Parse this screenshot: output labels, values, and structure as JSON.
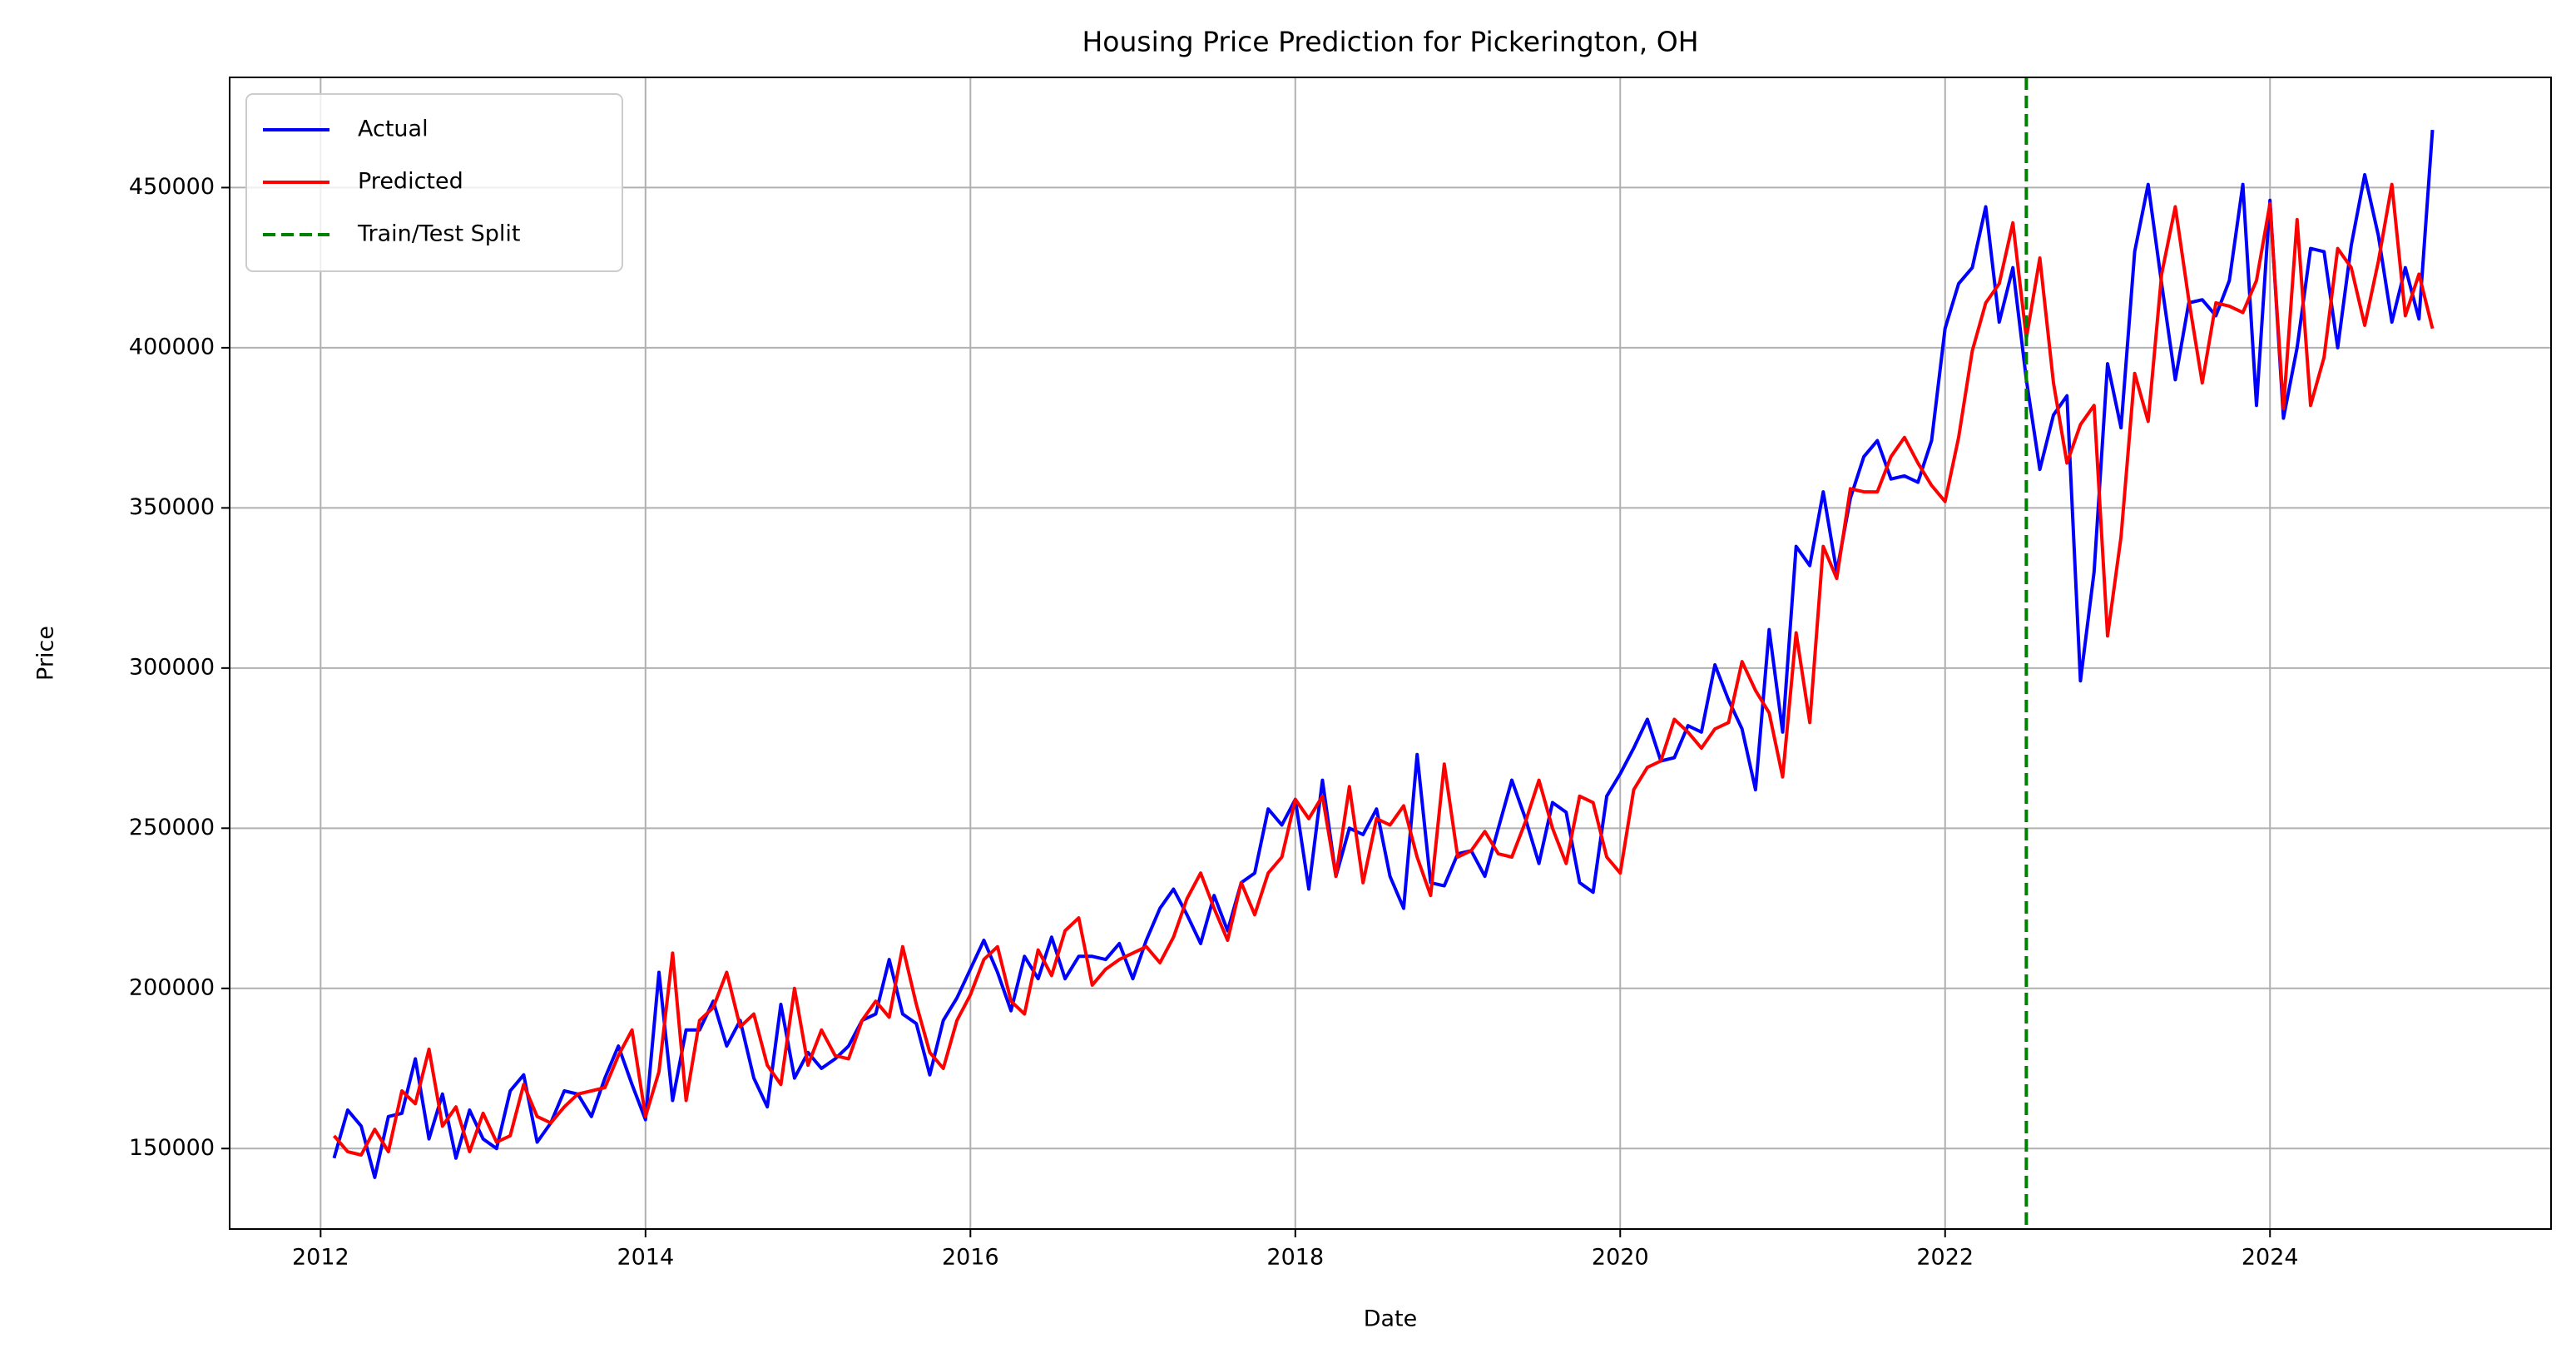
{
  "chart_data": {
    "type": "line",
    "title": "Housing Price Prediction for Pickerington, OH",
    "xlabel": "Date",
    "ylabel": "Price",
    "x": [
      2012.083,
      2012.167,
      2012.25,
      2012.333,
      2012.417,
      2012.5,
      2012.583,
      2012.667,
      2012.75,
      2012.833,
      2012.917,
      2013,
      2013.083,
      2013.167,
      2013.25,
      2013.333,
      2013.417,
      2013.5,
      2013.583,
      2013.667,
      2013.75,
      2013.833,
      2013.917,
      2014,
      2014.083,
      2014.167,
      2014.25,
      2014.333,
      2014.417,
      2014.5,
      2014.583,
      2014.667,
      2014.75,
      2014.833,
      2014.917,
      2015,
      2015.083,
      2015.167,
      2015.25,
      2015.333,
      2015.417,
      2015.5,
      2015.583,
      2015.667,
      2015.75,
      2015.833,
      2015.917,
      2016,
      2016.083,
      2016.167,
      2016.25,
      2016.333,
      2016.417,
      2016.5,
      2016.583,
      2016.667,
      2016.75,
      2016.833,
      2016.917,
      2017,
      2017.083,
      2017.167,
      2017.25,
      2017.333,
      2017.417,
      2017.5,
      2017.583,
      2017.667,
      2017.75,
      2017.833,
      2017.917,
      2018,
      2018.083,
      2018.167,
      2018.25,
      2018.333,
      2018.417,
      2018.5,
      2018.583,
      2018.667,
      2018.75,
      2018.833,
      2018.917,
      2019,
      2019.083,
      2019.167,
      2019.25,
      2019.333,
      2019.417,
      2019.5,
      2019.583,
      2019.667,
      2019.75,
      2019.833,
      2019.917,
      2020,
      2020.083,
      2020.167,
      2020.25,
      2020.333,
      2020.417,
      2020.5,
      2020.583,
      2020.667,
      2020.75,
      2020.833,
      2020.917,
      2021,
      2021.083,
      2021.167,
      2021.25,
      2021.333,
      2021.417,
      2021.5,
      2021.583,
      2021.667,
      2021.75,
      2021.833,
      2021.917,
      2022,
      2022.083,
      2022.167,
      2022.25,
      2022.333,
      2022.417,
      2022.5,
      2022.583,
      2022.667,
      2022.75,
      2022.833,
      2022.917,
      2023,
      2023.083,
      2023.167,
      2023.25,
      2023.333,
      2023.417,
      2023.5,
      2023.583,
      2023.667,
      2023.75,
      2023.833,
      2023.917,
      2024,
      2024.083,
      2024.167,
      2024.25,
      2024.333,
      2024.417,
      2024.5,
      2024.583,
      2024.667,
      2024.75,
      2024.833,
      2024.917,
      2025
    ],
    "series": [
      {
        "name": "Actual",
        "color": "#0000ff",
        "values": [
          147000,
          162000,
          157000,
          141000,
          160000,
          161000,
          178000,
          153000,
          167000,
          147000,
          162000,
          153000,
          150000,
          168000,
          173000,
          152000,
          158000,
          168000,
          167000,
          160000,
          172000,
          182000,
          170000,
          159000,
          205000,
          165000,
          187000,
          187000,
          196000,
          182000,
          190000,
          172000,
          163000,
          195000,
          172000,
          180000,
          175000,
          178000,
          182000,
          190000,
          192000,
          209000,
          192000,
          189000,
          173000,
          190000,
          197000,
          206000,
          215000,
          205000,
          193000,
          210000,
          203000,
          216000,
          203000,
          210000,
          210000,
          209000,
          214000,
          203000,
          215000,
          225000,
          231000,
          223000,
          214000,
          229000,
          218000,
          233000,
          236000,
          256000,
          251000,
          259000,
          231000,
          265000,
          235000,
          250000,
          248000,
          256000,
          235000,
          225000,
          273000,
          233000,
          232000,
          242000,
          243000,
          235000,
          250000,
          265000,
          253000,
          239000,
          258000,
          255000,
          233000,
          230000,
          260000,
          267000,
          275000,
          284000,
          271000,
          272000,
          282000,
          280000,
          301000,
          290000,
          281000,
          262000,
          312000,
          280000,
          338000,
          332000,
          355000,
          330000,
          353000,
          366000,
          371000,
          359000,
          360000,
          358000,
          371000,
          406000,
          420000,
          425000,
          444000,
          408000,
          425000,
          390000,
          362000,
          379000,
          385000,
          296000,
          330000,
          395000,
          375000,
          430000,
          451000,
          420000,
          390000,
          414000,
          415000,
          410000,
          421000,
          451000,
          382000,
          446000,
          378000,
          400000,
          431000,
          430000,
          400000,
          432000,
          454000,
          435000,
          408000,
          425000,
          409000,
          468000
        ]
      },
      {
        "name": "Predicted",
        "color": "#ff0000",
        "values": [
          154000,
          149000,
          148000,
          156000,
          149000,
          168000,
          164000,
          181000,
          157000,
          163000,
          149000,
          161000,
          152000,
          154000,
          170000,
          160000,
          158000,
          163000,
          167000,
          168000,
          169000,
          179000,
          187000,
          160000,
          174000,
          211000,
          165000,
          190000,
          194000,
          205000,
          188000,
          192000,
          176000,
          170000,
          200000,
          176000,
          187000,
          179000,
          178000,
          190000,
          196000,
          191000,
          213000,
          195000,
          180000,
          175000,
          190000,
          198000,
          209000,
          213000,
          196000,
          192000,
          212000,
          204000,
          218000,
          222000,
          201000,
          206000,
          209000,
          211000,
          213000,
          208000,
          216000,
          228000,
          236000,
          225000,
          215000,
          233000,
          223000,
          236000,
          241000,
          259000,
          253000,
          260000,
          235000,
          263000,
          233000,
          253000,
          251000,
          257000,
          241000,
          229000,
          270000,
          241000,
          243000,
          249000,
          242000,
          241000,
          252000,
          265000,
          250000,
          239000,
          260000,
          258000,
          241000,
          236000,
          262000,
          269000,
          271000,
          284000,
          280000,
          275000,
          281000,
          283000,
          302000,
          293000,
          286000,
          266000,
          311000,
          283000,
          338000,
          328000,
          356000,
          355000,
          355000,
          366000,
          372000,
          364000,
          357000,
          352000,
          372000,
          399000,
          414000,
          420000,
          439000,
          403000,
          428000,
          389000,
          364000,
          376000,
          382000,
          310000,
          341000,
          392000,
          377000,
          423000,
          444000,
          415000,
          389000,
          414000,
          413000,
          411000,
          421000,
          445000,
          381000,
          440000,
          382000,
          397000,
          431000,
          425000,
          407000,
          427000,
          451000,
          410000,
          423000,
          406000
        ]
      }
    ],
    "split": {
      "name": "Train/Test Split",
      "color": "#008000",
      "x": 2022.5
    },
    "xlim": [
      2011.44,
      2025.73
    ],
    "ylim": [
      124870,
      484400
    ],
    "xticks": [
      2012,
      2014,
      2016,
      2018,
      2020,
      2022,
      2024
    ],
    "yticks": [
      150000,
      200000,
      250000,
      300000,
      350000,
      400000,
      450000
    ],
    "grid": true,
    "legend": "upper left"
  }
}
